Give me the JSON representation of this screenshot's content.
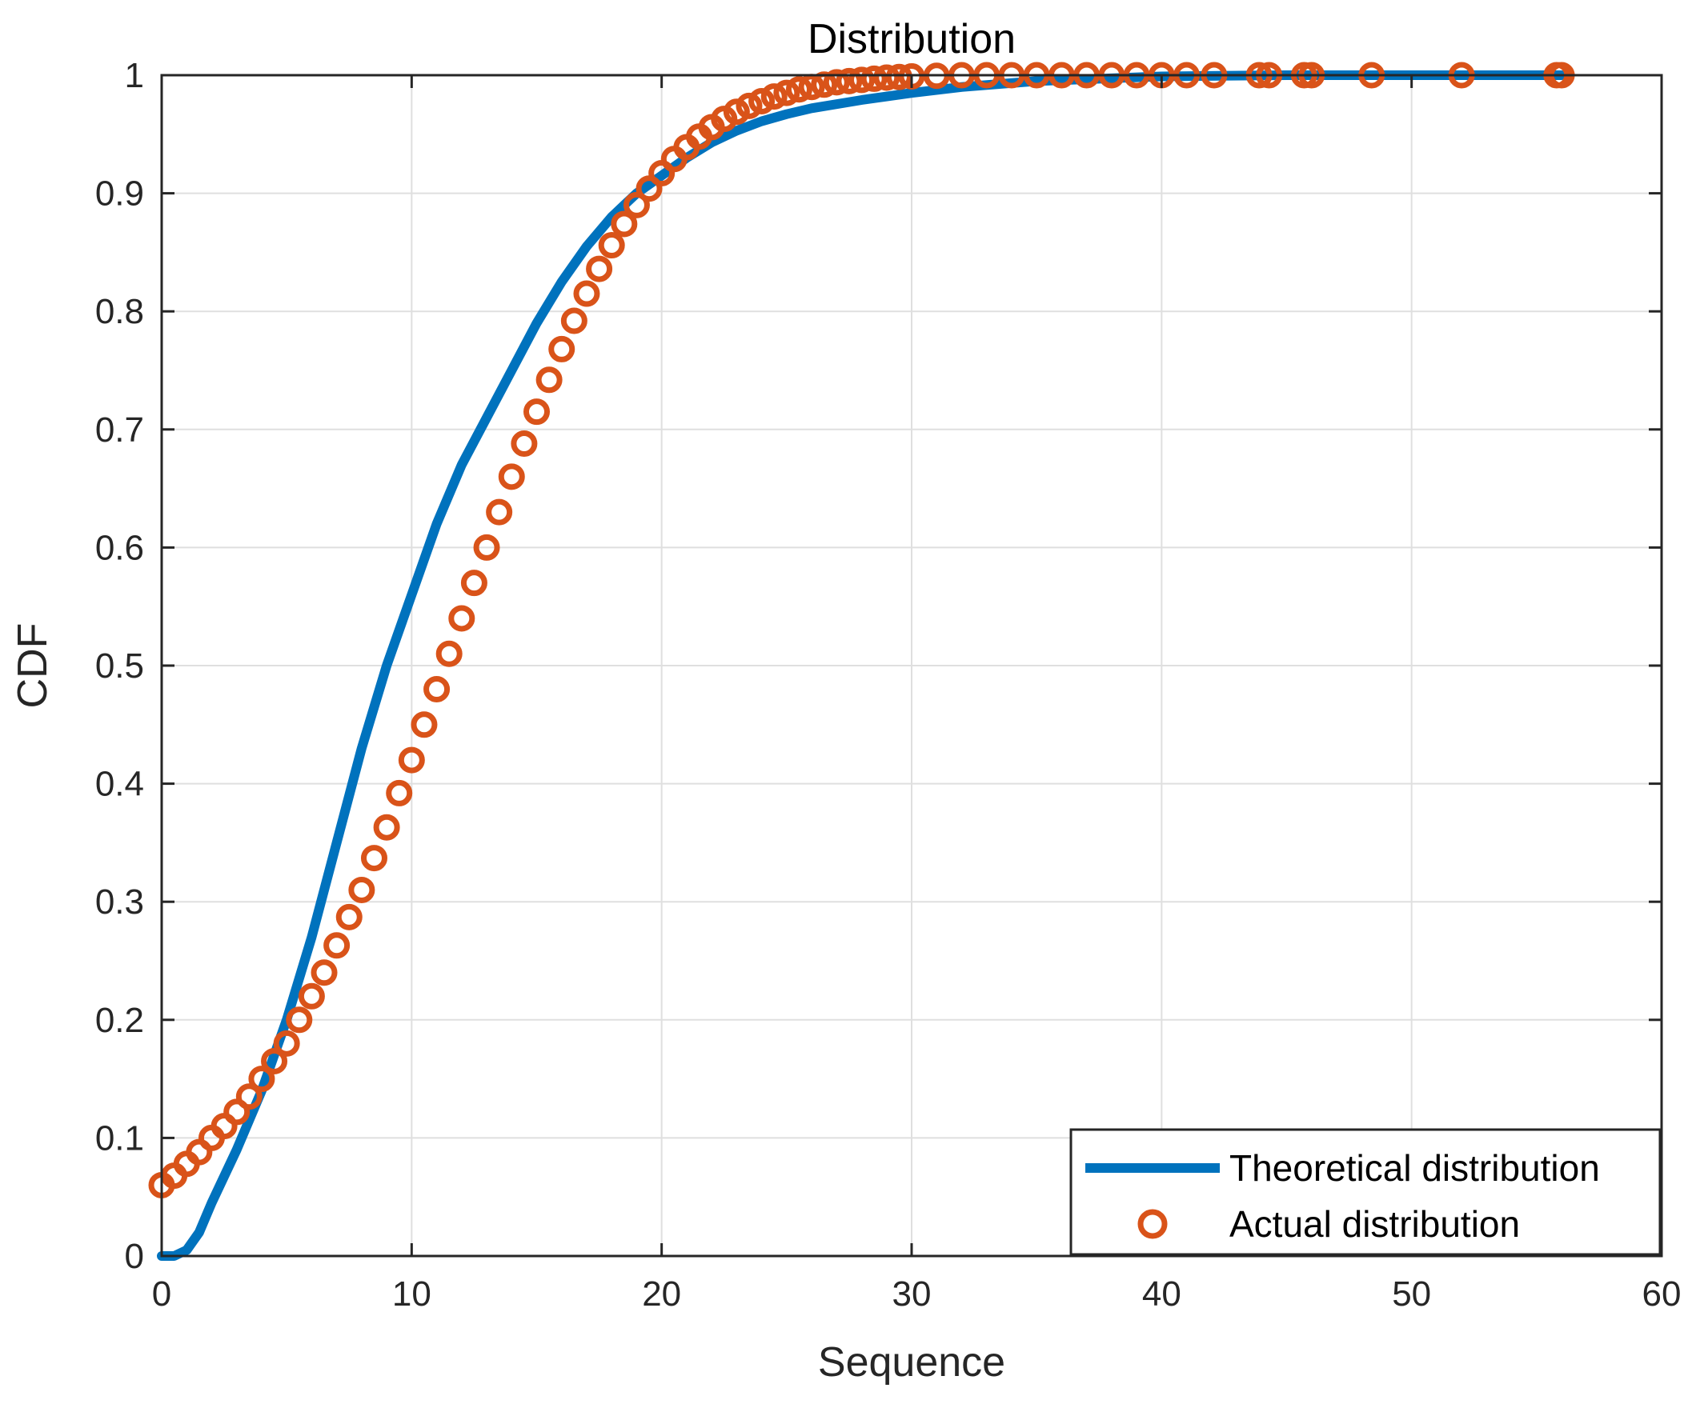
{
  "chart_data": {
    "type": "line",
    "title": "Distribution",
    "xlabel": "Sequence",
    "ylabel": "CDF",
    "xlim": [
      0,
      60
    ],
    "ylim": [
      0,
      1
    ],
    "xticks": [
      0,
      10,
      20,
      30,
      40,
      50,
      60
    ],
    "xtick_labels": [
      "0",
      "10",
      "20",
      "30",
      "40",
      "50",
      "60"
    ],
    "yticks": [
      0,
      0.1,
      0.2,
      0.3,
      0.4,
      0.5,
      0.6,
      0.7,
      0.8,
      0.9,
      1
    ],
    "ytick_labels": [
      "0",
      "0.1",
      "0.2",
      "0.3",
      "0.4",
      "0.5",
      "0.6",
      "0.7",
      "0.8",
      "0.9",
      "1"
    ],
    "grid": true,
    "legend_position": "bottom-right",
    "series": [
      {
        "name": "Theoretical distribution",
        "style": "line",
        "color": "#0072BD",
        "x": [
          0,
          0.5,
          1,
          1.5,
          2,
          3,
          4,
          5,
          6,
          7,
          8,
          9,
          10,
          11,
          12,
          13,
          14,
          15,
          16,
          17,
          18,
          19,
          20,
          21,
          22,
          23,
          24,
          25,
          26,
          28,
          30,
          32,
          35,
          40,
          45,
          50,
          56
        ],
        "values": [
          0,
          0.0,
          0.005,
          0.02,
          0.045,
          0.09,
          0.14,
          0.2,
          0.27,
          0.35,
          0.43,
          0.5,
          0.56,
          0.62,
          0.67,
          0.71,
          0.75,
          0.79,
          0.825,
          0.855,
          0.88,
          0.9,
          0.915,
          0.93,
          0.943,
          0.953,
          0.961,
          0.967,
          0.972,
          0.979,
          0.985,
          0.99,
          0.995,
          0.999,
          1.0,
          1.0,
          1.0
        ]
      },
      {
        "name": "Actual distribution",
        "style": "marker",
        "marker": "o",
        "color": "#D95319",
        "x": [
          0,
          0.5,
          1,
          1.5,
          2,
          2.5,
          3,
          3.5,
          4,
          4.5,
          5,
          5.5,
          6,
          6.5,
          7,
          7.5,
          8,
          8.5,
          9,
          9.5,
          10,
          10.5,
          11,
          11.5,
          12,
          12.5,
          13,
          13.5,
          14,
          14.5,
          15,
          15.5,
          16,
          16.5,
          17,
          17.5,
          18,
          18.5,
          19,
          19.5,
          20,
          20.5,
          21,
          21.5,
          22,
          22.5,
          23,
          23.5,
          24,
          24.5,
          25,
          25.5,
          26,
          26.5,
          27,
          27.5,
          28,
          28.5,
          29,
          29.5,
          30,
          31,
          32,
          33,
          34,
          35,
          36,
          37,
          38,
          39,
          40,
          41,
          42.1,
          43.9,
          44.3,
          45.7,
          46,
          48.4,
          52,
          55.8,
          56
        ],
        "values": [
          0.06,
          0.068,
          0.078,
          0.088,
          0.1,
          0.11,
          0.122,
          0.135,
          0.15,
          0.165,
          0.18,
          0.2,
          0.22,
          0.24,
          0.263,
          0.287,
          0.31,
          0.337,
          0.363,
          0.392,
          0.42,
          0.45,
          0.48,
          0.51,
          0.54,
          0.57,
          0.6,
          0.63,
          0.66,
          0.688,
          0.715,
          0.742,
          0.768,
          0.792,
          0.815,
          0.836,
          0.856,
          0.874,
          0.89,
          0.904,
          0.917,
          0.929,
          0.939,
          0.948,
          0.956,
          0.963,
          0.969,
          0.974,
          0.978,
          0.982,
          0.985,
          0.988,
          0.99,
          0.992,
          0.994,
          0.995,
          0.996,
          0.997,
          0.998,
          0.9985,
          0.999,
          0.9995,
          1,
          1,
          1,
          1,
          1,
          1,
          1,
          1,
          1,
          1,
          1,
          1,
          1,
          1,
          1,
          1,
          1,
          1,
          1
        ]
      }
    ]
  }
}
